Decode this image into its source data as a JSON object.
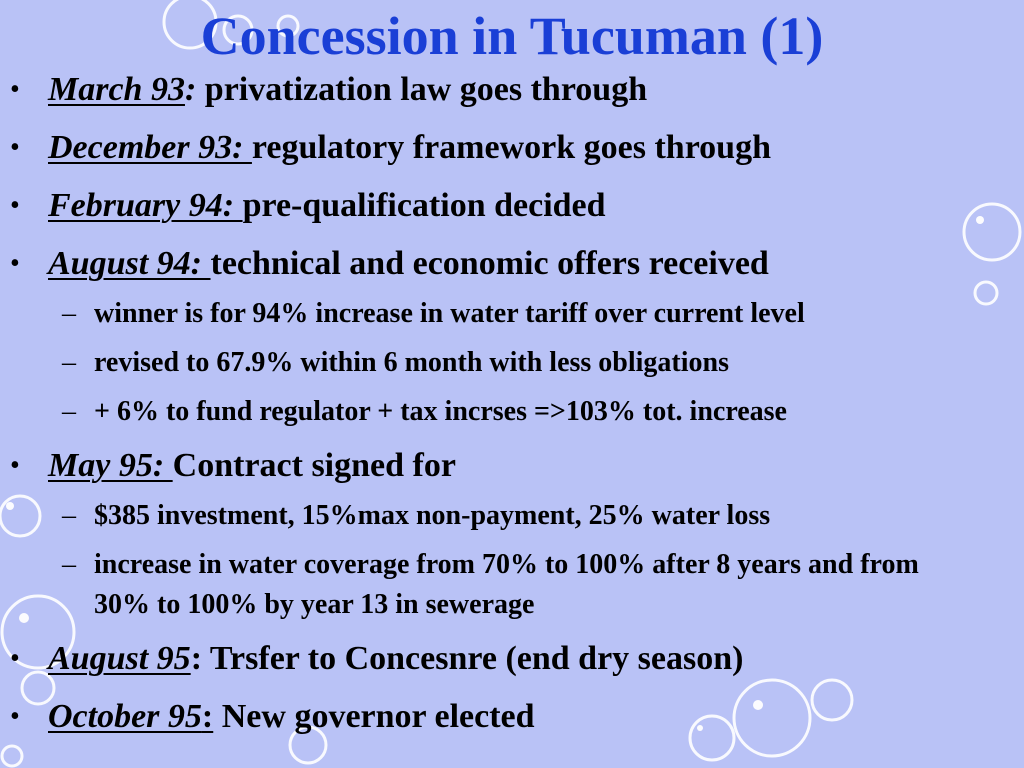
{
  "slide": {
    "title": "Concession in Tucuman (1)",
    "bullet_glyph": "•",
    "dash_glyph": "–",
    "title_color": "#1a3fd6",
    "background_color": "#b9c2f6",
    "items": [
      {
        "date": "March 93",
        "sep": ":",
        "text": " privatization law goes through",
        "date_underline_incl_sep": false
      },
      {
        "date": "December 93: ",
        "sep": "",
        "text": "regulatory framework goes through"
      },
      {
        "date": "February 94: ",
        "sep": "",
        "text": "pre-qualification decided"
      },
      {
        "date": "August 94: ",
        "sep": "",
        "text": "technical and economic offers received"
      },
      {
        "date": "May 95: ",
        "sep": "",
        "text": "Contract signed for"
      },
      {
        "date": "August 95",
        "sep": ":",
        "text": " Trsfer to Concesnre (end dry season)"
      },
      {
        "date": "October 95",
        "sep": ":",
        "text": " New governor elected"
      }
    ],
    "sub_august94": [
      "winner is for 94% increase in water tariff over current level",
      "revised to 67.9% within 6 month with less obligations",
      "+ 6% to fund regulator + tax incrses =>103% tot. increase"
    ],
    "sub_may95": [
      "$385 investment, 15%max non-payment, 25% water loss",
      "increase in water coverage from 70% to 100% after 8 years and from 30% to 100% by year 13 in sewerage"
    ]
  }
}
